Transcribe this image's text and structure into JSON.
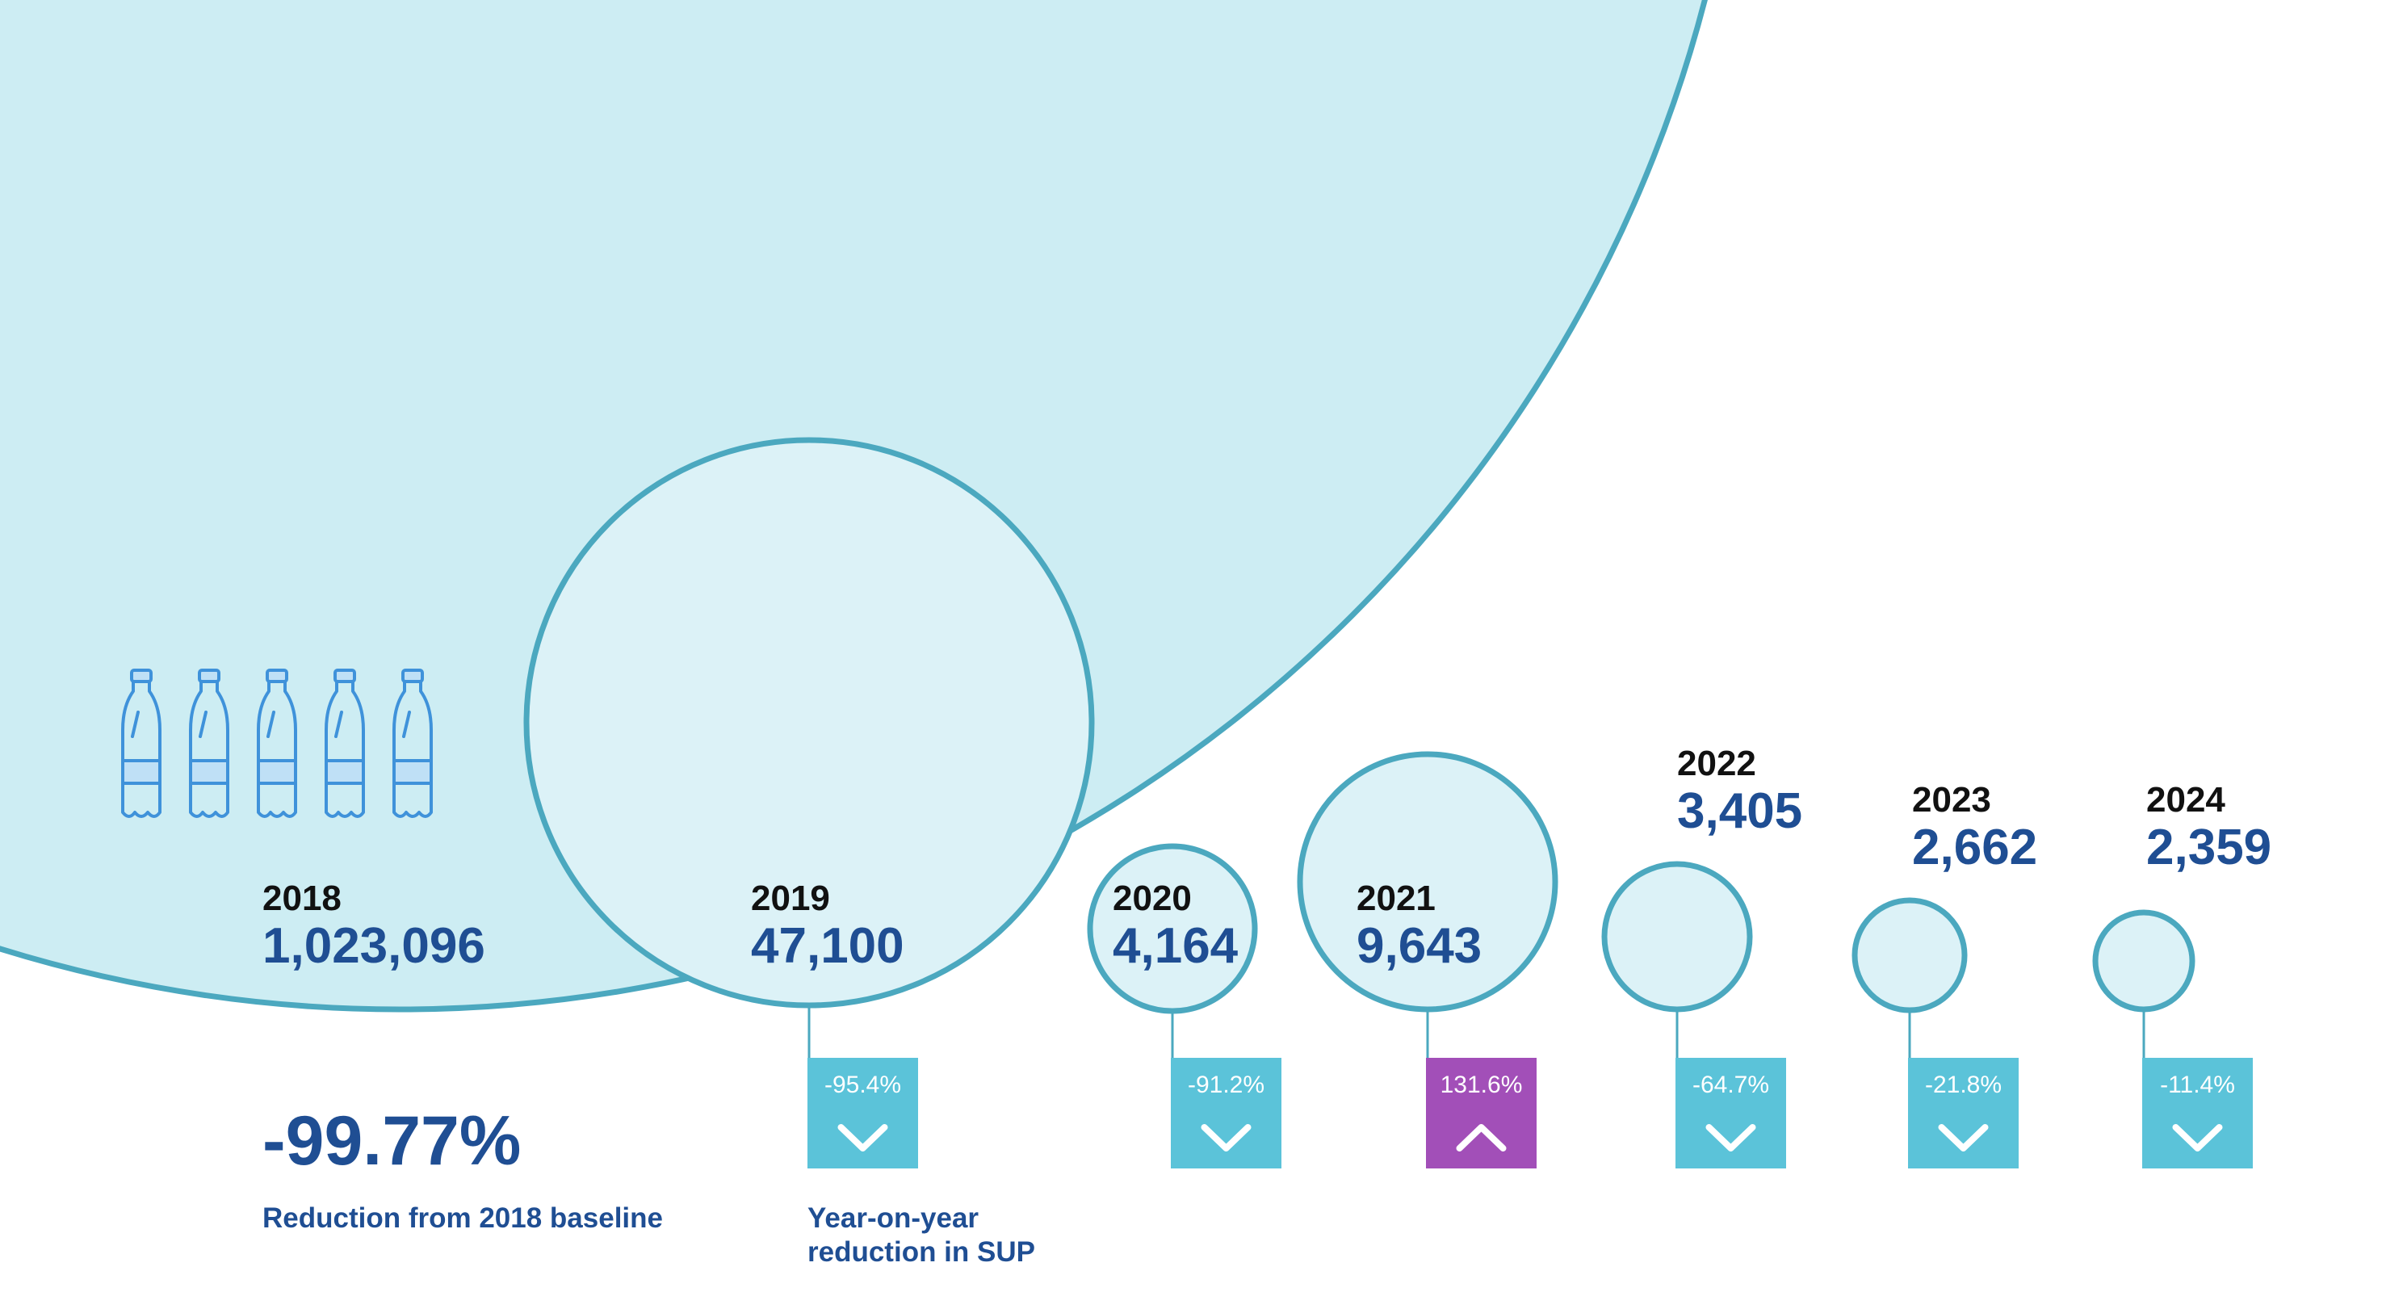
{
  "chart_data": {
    "type": "bubble",
    "unit": "SUP",
    "points": [
      {
        "year": "2018",
        "value": 1023096,
        "value_label": "1,023,096",
        "change": null,
        "change_label": null
      },
      {
        "year": "2019",
        "value": 47100,
        "value_label": "47,100",
        "change": -95.4,
        "change_label": "-95.4%",
        "direction": "down"
      },
      {
        "year": "2020",
        "value": 4164,
        "value_label": "4,164",
        "change": -91.2,
        "change_label": "-91.2%",
        "direction": "down"
      },
      {
        "year": "2021",
        "value": 9643,
        "value_label": "9,643",
        "change": 131.6,
        "change_label": "131.6%",
        "direction": "up"
      },
      {
        "year": "2022",
        "value": 3405,
        "value_label": "3,405",
        "change": -64.7,
        "change_label": "-64.7%",
        "direction": "down"
      },
      {
        "year": "2023",
        "value": 2662,
        "value_label": "2,662",
        "change": -21.8,
        "change_label": "-21.8%",
        "direction": "down"
      },
      {
        "year": "2024",
        "value": 2359,
        "value_label": "2,359",
        "change": -11.4,
        "change_label": "-11.4%",
        "direction": "down"
      }
    ],
    "headline": "-99.77%",
    "headline_caption": "Reduction from 2018 baseline",
    "yoy_caption": [
      "Year-on-year",
      "reduction in SUP"
    ],
    "bottle_icon_count": 5
  },
  "colors": {
    "big_fill": "#cdedf3",
    "bubble_fill": "#dcf2f7",
    "bubble_stroke": "#4ba8bf",
    "down_box": "#5bc3d9",
    "up_box": "#a24fb8",
    "value_text": "#1f4e93",
    "year_text": "#111111",
    "bottle": "#3f92da",
    "bottle_fill": "#bfe0f6"
  }
}
